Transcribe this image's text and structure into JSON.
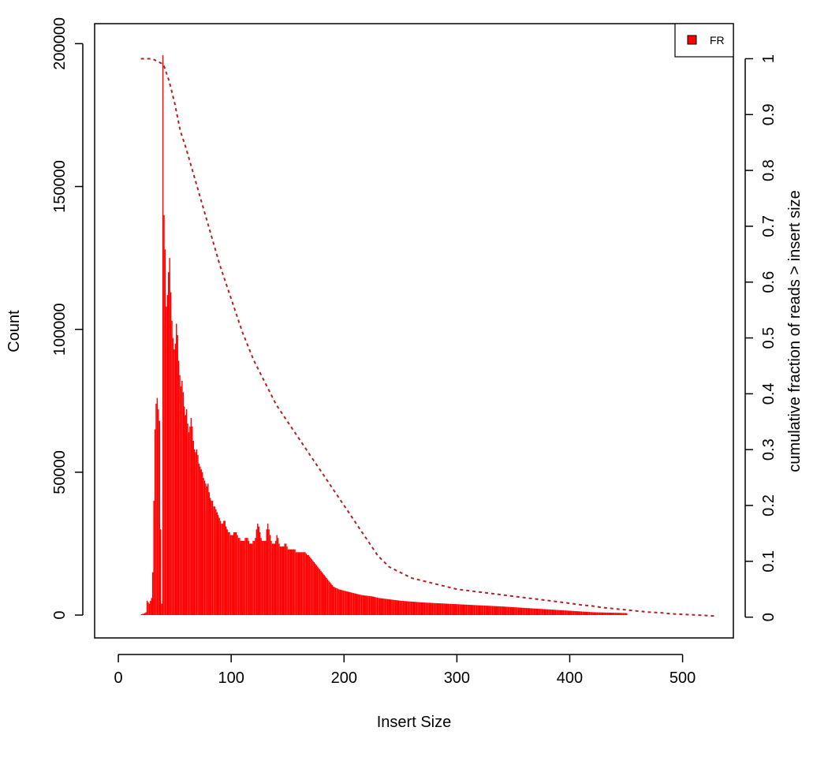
{
  "chart_data": {
    "type": "bar",
    "xlabel": "Insert Size",
    "ylabel": "Count",
    "y2label": "cumulative fraction of reads > insert size",
    "xlim": [
      -21,
      545
    ],
    "ylim": [
      -8000,
      207000
    ],
    "y2lim": [
      -0.0372,
      1.0628
    ],
    "x_ticks": [
      0,
      100,
      200,
      300,
      400,
      500
    ],
    "y_ticks": [
      0,
      50000,
      100000,
      150000,
      200000
    ],
    "y2_ticks": [
      0,
      0.1,
      0.2,
      0.3,
      0.4,
      0.5,
      0.6,
      0.7,
      0.8,
      0.9,
      1
    ],
    "grid": false,
    "legend_position": "top-right",
    "series": [
      {
        "name": "FR",
        "type": "histogram",
        "color": "#ff0000",
        "x_start": 20,
        "values": [
          300,
          400,
          500,
          700,
          1000,
          5000,
          4500,
          4000,
          5000,
          6000,
          15000,
          40000,
          65000,
          74000,
          76000,
          72000,
          68000,
          30000,
          4000,
          196000,
          140000,
          128000,
          108000,
          112000,
          120000,
          125000,
          113000,
          103000,
          97000,
          93000,
          95000,
          102000,
          98000,
          89000,
          84000,
          80000,
          82000,
          78000,
          73000,
          70000,
          72000,
          67000,
          64000,
          66000,
          69000,
          66000,
          61000,
          58000,
          57000,
          58000,
          56000,
          53000,
          52000,
          51000,
          50000,
          48000,
          47000,
          46000,
          45000,
          46000,
          43000,
          41000,
          40000,
          40000,
          38000,
          38000,
          37000,
          36000,
          35000,
          34000,
          33000,
          32000,
          32000,
          33000,
          33000,
          31000,
          30000,
          29000,
          29000,
          28000,
          28000,
          28000,
          29000,
          29000,
          29000,
          28000,
          27000,
          27000,
          26000,
          26000,
          26000,
          26000,
          27000,
          27000,
          27000,
          26000,
          25000,
          25000,
          25000,
          26000,
          26000,
          27000,
          30000,
          32000,
          31000,
          29000,
          27000,
          26000,
          26000,
          26000,
          26000,
          30000,
          32000,
          30000,
          28000,
          26000,
          25000,
          25000,
          25000,
          26000,
          28000,
          27000,
          25000,
          24000,
          24000,
          24000,
          24000,
          25000,
          25000,
          24000,
          23000,
          23000,
          23000,
          23000,
          23000,
          23000,
          23000,
          22000,
          22000,
          22000,
          22000,
          22000,
          22000,
          22000,
          22000,
          22000,
          21500,
          21000,
          21000,
          20500,
          20000,
          19500,
          19000,
          18500,
          18000,
          17500,
          17000,
          16500,
          16000,
          15500,
          15000,
          14500,
          14000,
          13500,
          13000,
          12500,
          12000,
          11500,
          11000,
          10500,
          10000,
          9800,
          9600,
          9400,
          9200,
          9000,
          8900,
          8800,
          8700,
          8600,
          8500,
          8400,
          8300,
          8200,
          8100,
          8000,
          7900,
          7800,
          7700,
          7600,
          7500,
          7400,
          7300,
          7200,
          7100,
          7000,
          6950,
          6900,
          6850,
          6800,
          6750,
          6700,
          6650,
          6600,
          6550,
          6500,
          6400,
          6300,
          6200,
          6100,
          6000,
          5950,
          5900,
          5850,
          5800,
          5750,
          5700,
          5650,
          5600,
          5550,
          5500,
          5450,
          5400,
          5350,
          5300,
          5250,
          5200,
          5150,
          5100,
          5050,
          5000,
          4970,
          4940,
          4910,
          4880,
          4850,
          4820,
          4790,
          4760,
          4730,
          4700,
          4670,
          4640,
          4610,
          4580,
          4550,
          4520,
          4490,
          4460,
          4430,
          4400,
          4380,
          4360,
          4340,
          4320,
          4300,
          4280,
          4260,
          4240,
          4220,
          4200,
          4180,
          4160,
          4140,
          4120,
          4100,
          4080,
          4060,
          4040,
          4020,
          4000,
          3980,
          3960,
          3940,
          3920,
          3900,
          3880,
          3860,
          3840,
          3820,
          3800,
          3780,
          3760,
          3740,
          3720,
          3700,
          3680,
          3660,
          3640,
          3620,
          3600,
          3580,
          3560,
          3540,
          3520,
          3500,
          3480,
          3460,
          3440,
          3420,
          3400,
          3380,
          3360,
          3340,
          3320,
          3300,
          3280,
          3260,
          3240,
          3220,
          3200,
          3180,
          3160,
          3140,
          3120,
          3100,
          3080,
          3060,
          3040,
          3020,
          3000,
          2975,
          2950,
          2925,
          2900,
          2875,
          2850,
          2825,
          2800,
          2775,
          2750,
          2725,
          2700,
          2675,
          2650,
          2625,
          2600,
          2575,
          2550,
          2525,
          2500,
          2475,
          2450,
          2425,
          2400,
          2375,
          2350,
          2325,
          2300,
          2275,
          2250,
          2225,
          2200,
          2175,
          2150,
          2125,
          2100,
          2075,
          2050,
          2025,
          2000,
          1975,
          1950,
          1925,
          1900,
          1875,
          1850,
          1825,
          1800,
          1775,
          1750,
          1725,
          1700,
          1675,
          1650,
          1625,
          1600,
          1575,
          1550,
          1525,
          1500,
          1475,
          1450,
          1425,
          1400,
          1375,
          1350,
          1325,
          1300,
          1275,
          1250,
          1225,
          1200,
          1175,
          1150,
          1125,
          1100,
          1075,
          1050,
          1025,
          1000,
          990,
          980,
          970,
          960,
          950,
          940,
          930,
          920,
          910,
          900,
          890,
          880,
          870,
          860,
          850,
          840,
          830,
          820,
          810,
          800,
          790,
          780,
          770,
          760,
          750,
          740,
          730,
          720,
          710,
          700
        ]
      },
      {
        "type": "line",
        "style": "dashed",
        "color": "#b22222",
        "axis": "right",
        "x": [
          20,
          30,
          40,
          45,
          50,
          55,
          60,
          70,
          80,
          90,
          100,
          110,
          120,
          130,
          140,
          150,
          160,
          170,
          180,
          190,
          200,
          210,
          220,
          230,
          240,
          250,
          260,
          270,
          280,
          290,
          300,
          320,
          340,
          360,
          380,
          400,
          410,
          420,
          430,
          440,
          450,
          460,
          470,
          480,
          490,
          500,
          510,
          520,
          528
        ],
        "values": [
          1.0,
          1.0,
          0.99,
          0.96,
          0.92,
          0.87,
          0.84,
          0.77,
          0.7,
          0.63,
          0.57,
          0.51,
          0.46,
          0.42,
          0.38,
          0.35,
          0.32,
          0.29,
          0.26,
          0.23,
          0.2,
          0.17,
          0.14,
          0.11,
          0.09,
          0.08,
          0.07,
          0.065,
          0.06,
          0.055,
          0.05,
          0.045,
          0.04,
          0.035,
          0.03,
          0.025,
          0.022,
          0.02,
          0.017,
          0.015,
          0.013,
          0.011,
          0.009,
          0.008,
          0.006,
          0.005,
          0.004,
          0.003,
          0.002
        ]
      }
    ]
  }
}
